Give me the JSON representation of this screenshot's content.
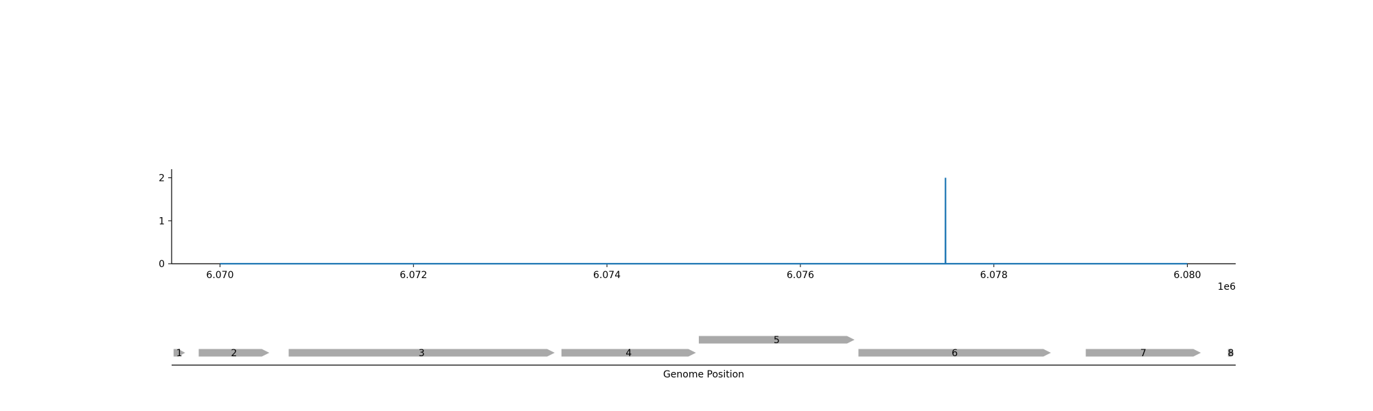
{
  "chart_data": [
    {
      "type": "line",
      "title": "",
      "xlabel": "",
      "ylabel": "",
      "x_offset_label": "1e6",
      "xlim": [
        6069500,
        6080500
      ],
      "ylim": [
        0,
        2.2
      ],
      "x_ticks": [
        6070000,
        6072000,
        6074000,
        6076000,
        6078000,
        6080000
      ],
      "x_tick_labels": [
        "6.070",
        "6.072",
        "6.074",
        "6.076",
        "6.078",
        "6.080"
      ],
      "y_ticks": [
        0,
        1,
        2
      ],
      "y_tick_labels": [
        "0",
        "1",
        "2"
      ],
      "grid": false,
      "color": "#1f77b4",
      "series": [
        {
          "x": [
            6070000,
            6077499,
            6077500,
            6077501,
            6080000
          ],
          "y": [
            0,
            0,
            2,
            0,
            0
          ]
        }
      ]
    },
    {
      "type": "gene-track",
      "xlabel": "Genome Position",
      "xlim": [
        6069500,
        6080500
      ],
      "color": "#a9a9a9",
      "genes": [
        {
          "label": "1",
          "start": 6069520,
          "end": 6069640,
          "strand": 1,
          "row": 0
        },
        {
          "label": "2",
          "start": 6069780,
          "end": 6070510,
          "strand": 1,
          "row": 0
        },
        {
          "label": "3",
          "start": 6070710,
          "end": 6073460,
          "strand": 1,
          "row": 0
        },
        {
          "label": "4",
          "start": 6073530,
          "end": 6074920,
          "strand": 1,
          "row": 0
        },
        {
          "label": "5",
          "start": 6074950,
          "end": 6076560,
          "strand": 1,
          "row": 1
        },
        {
          "label": "6",
          "start": 6076600,
          "end": 6078590,
          "strand": 1,
          "row": 0
        },
        {
          "label": "7",
          "start": 6078950,
          "end": 6080140,
          "strand": 1,
          "row": 0
        },
        {
          "label": "8",
          "start": 6080420,
          "end": 6080480,
          "strand": 1,
          "row": 0
        }
      ]
    }
  ]
}
